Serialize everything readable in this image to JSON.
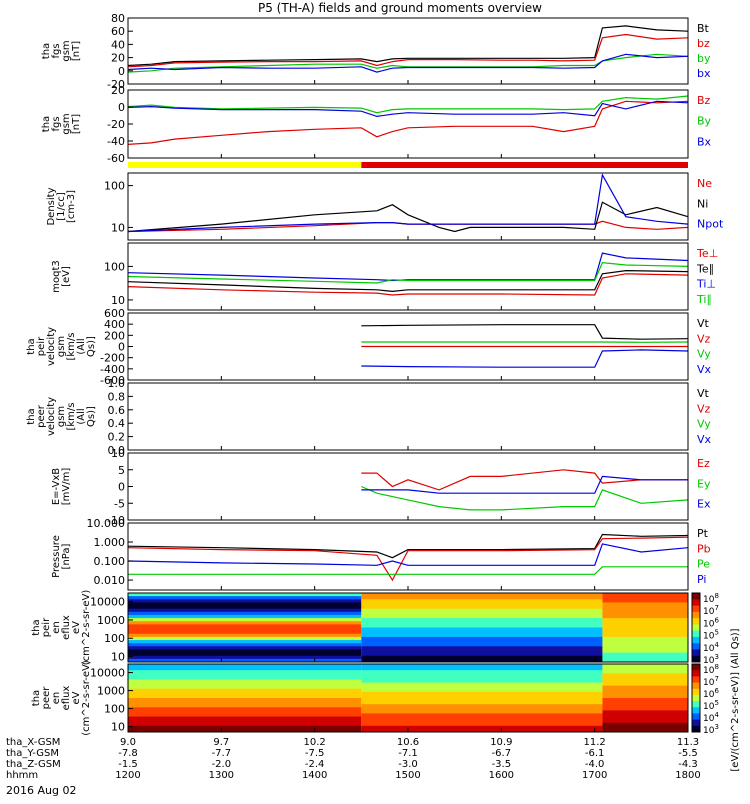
{
  "title": "P5 (TH-A) fields and ground moments overview",
  "date_label": "2016 Aug 02",
  "x_axis": {
    "row_labels": [
      "tha_X-GSM",
      "tha_Y-GSM",
      "tha_Z-GSM",
      "hhmm"
    ],
    "ticks": [
      {
        "row1": "9.0",
        "row2": "-7.8",
        "row3": "-1.5",
        "hhmm": "1200"
      },
      {
        "row1": "9.7",
        "row2": "-7.7",
        "row3": "-2.0",
        "hhmm": "1300"
      },
      {
        "row1": "10.2",
        "row2": "-7.5",
        "row3": "-2.4",
        "hhmm": "1400"
      },
      {
        "row1": "10.6",
        "row2": "-7.1",
        "row3": "-3.0",
        "hhmm": "1500"
      },
      {
        "row1": "10.9",
        "row2": "-6.7",
        "row3": "-3.5",
        "hhmm": "1600"
      },
      {
        "row1": "11.2",
        "row2": "-6.1",
        "row3": "-4.0",
        "hhmm": "1700"
      },
      {
        "row1": "11.3",
        "row2": "-5.5",
        "row3": "-4.3",
        "hhmm": "1800"
      }
    ]
  },
  "colorbar": {
    "label": "[eV/(cm^2-s-sr-eV)] (All Qs)]",
    "ticks": [
      "10^8",
      "10^7",
      "10^6",
      "10^5",
      "10^4",
      "10^3"
    ],
    "ticks2": [
      "10^8",
      "10^7",
      "10^6",
      "10^5",
      "10^4",
      "10^3"
    ]
  },
  "colors": {
    "black": "#000000",
    "red": "#e00000",
    "green": "#00c800",
    "blue": "#0000e0",
    "yellow": "#ffff00"
  },
  "chart_data": [
    {
      "type": "line",
      "ylabel": "tha fgs gsm [nT]",
      "ylim": [
        -20,
        80
      ],
      "yticks": [
        "80",
        "60",
        "40",
        "20",
        "0",
        "-20"
      ],
      "x_hhmm": [
        1200,
        1215,
        1230,
        1300,
        1330,
        1400,
        1430,
        1440,
        1450,
        1500,
        1530,
        1600,
        1620,
        1640,
        1700,
        1705,
        1720,
        1740,
        1800
      ],
      "series": [
        {
          "name": "Bt",
          "color": "black",
          "values": [
            8,
            10,
            14,
            15,
            16,
            17,
            18,
            14,
            18,
            19,
            19,
            19,
            19,
            19,
            20,
            65,
            68,
            62,
            60
          ]
        },
        {
          "name": "bz",
          "color": "red",
          "values": [
            6,
            8,
            12,
            13,
            14,
            14,
            15,
            8,
            14,
            17,
            17,
            16,
            16,
            15,
            16,
            50,
            55,
            48,
            50
          ]
        },
        {
          "name": "by",
          "color": "green",
          "values": [
            -2,
            0,
            4,
            6,
            8,
            10,
            10,
            4,
            8,
            6,
            6,
            6,
            6,
            8,
            8,
            15,
            20,
            25,
            22
          ]
        },
        {
          "name": "bx",
          "color": "blue",
          "values": [
            2,
            4,
            2,
            5,
            4,
            4,
            6,
            -2,
            4,
            5,
            5,
            5,
            5,
            4,
            5,
            15,
            25,
            20,
            22
          ]
        }
      ]
    },
    {
      "type": "line",
      "ylabel": "tha fgs gsm [nT]",
      "ylim": [
        -70,
        20
      ],
      "yticks": [
        "20",
        "0",
        "-20",
        "-40",
        "-60"
      ],
      "x_hhmm": [
        1200,
        1215,
        1230,
        1300,
        1330,
        1400,
        1430,
        1440,
        1450,
        1500,
        1530,
        1600,
        1620,
        1640,
        1700,
        1705,
        1720,
        1740,
        1800
      ],
      "series": [
        {
          "name": "Bz",
          "color": "red",
          "values": [
            -52,
            -50,
            -45,
            -40,
            -35,
            -32,
            -30,
            -42,
            -35,
            -30,
            -28,
            -28,
            -28,
            -35,
            -28,
            -5,
            5,
            3,
            5
          ]
        },
        {
          "name": "By",
          "color": "green",
          "values": [
            -2,
            0,
            -3,
            -5,
            -4,
            -3,
            -4,
            -10,
            -6,
            -5,
            -5,
            -5,
            -5,
            -6,
            -5,
            5,
            10,
            8,
            12
          ]
        },
        {
          "name": "Bx",
          "color": "blue",
          "values": [
            -3,
            -2,
            -4,
            -6,
            -6,
            -6,
            -8,
            -15,
            -12,
            -10,
            -12,
            -12,
            -12,
            -10,
            -14,
            2,
            -5,
            5,
            3
          ]
        }
      ]
    },
    {
      "type": "line",
      "ylabel": "Density [1/cc] [cm-3]",
      "ylim": [
        5,
        200
      ],
      "log": true,
      "yticks": [
        "100",
        "10"
      ],
      "x_hhmm": [
        1200,
        1300,
        1400,
        1440,
        1450,
        1500,
        1520,
        1530,
        1540,
        1600,
        1640,
        1700,
        1705,
        1720,
        1740,
        1800
      ],
      "series": [
        {
          "name": "Ne",
          "color": "red",
          "values": [
            8,
            9,
            11,
            13,
            13,
            12,
            12,
            12,
            12,
            12,
            12,
            12,
            14,
            10,
            9,
            10
          ]
        },
        {
          "name": "Ni",
          "color": "black",
          "values": [
            8,
            12,
            20,
            25,
            35,
            20,
            10,
            8,
            10,
            10,
            10,
            9,
            40,
            20,
            30,
            18
          ]
        },
        {
          "name": "Npot",
          "color": "blue",
          "values": [
            8,
            10,
            12,
            13,
            13,
            12,
            12,
            12,
            12,
            12,
            12,
            12,
            180,
            18,
            14,
            12
          ]
        }
      ]
    },
    {
      "type": "line",
      "ylabel": "moqt3 [eV]",
      "ylim": [
        5,
        500
      ],
      "log": true,
      "yticks": [
        "100",
        "10"
      ],
      "x_hhmm": [
        1200,
        1300,
        1400,
        1440,
        1450,
        1500,
        1600,
        1700,
        1705,
        1720,
        1800
      ],
      "series": [
        {
          "name": "Te⊥",
          "color": "red",
          "values": [
            25,
            20,
            17,
            16,
            14,
            15,
            15,
            14,
            45,
            60,
            55
          ]
        },
        {
          "name": "Te∥",
          "color": "black",
          "values": [
            35,
            28,
            22,
            20,
            18,
            20,
            20,
            20,
            60,
            75,
            70
          ]
        },
        {
          "name": "Ti⊥",
          "color": "blue",
          "values": [
            65,
            55,
            45,
            40,
            38,
            40,
            40,
            40,
            250,
            180,
            150
          ]
        },
        {
          "name": "Ti∥",
          "color": "green",
          "values": [
            50,
            42,
            36,
            32,
            40,
            38,
            38,
            38,
            130,
            110,
            100
          ]
        }
      ]
    },
    {
      "type": "line",
      "ylabel": "tha peir velocity gsm [km/s (All Qs)]",
      "ylim": [
        -600,
        600
      ],
      "yticks": [
        "600",
        "400",
        "200",
        "0",
        "-200",
        "-400",
        "-600"
      ],
      "x_hhmm": [
        1430,
        1500,
        1600,
        1700,
        1705,
        1730,
        1800
      ],
      "series": [
        {
          "name": "Vt",
          "color": "black",
          "values": [
            370,
            380,
            390,
            390,
            150,
            130,
            140
          ]
        },
        {
          "name": "Vz",
          "color": "red",
          "values": [
            0,
            0,
            0,
            0,
            0,
            0,
            0
          ]
        },
        {
          "name": "Vy",
          "color": "green",
          "values": [
            80,
            80,
            80,
            80,
            80,
            75,
            80
          ]
        },
        {
          "name": "Vx",
          "color": "blue",
          "values": [
            -350,
            -360,
            -370,
            -370,
            -80,
            -60,
            -80
          ]
        }
      ]
    },
    {
      "type": "line",
      "ylabel": "tha peer velocity gsm [km/s (All Qs)]",
      "ylim": [
        0,
        1
      ],
      "yticks": [
        "1.0",
        "0.8",
        "0.6",
        "0.4",
        "0.2",
        "0.0"
      ],
      "series": [
        {
          "name": "Vt",
          "color": "black",
          "values": []
        },
        {
          "name": "Vz",
          "color": "red",
          "values": []
        },
        {
          "name": "Vy",
          "color": "green",
          "values": []
        },
        {
          "name": "Vx",
          "color": "blue",
          "values": []
        }
      ]
    },
    {
      "type": "line",
      "ylabel": "E=-VxB [mV/m]",
      "ylim": [
        -10,
        10
      ],
      "yticks": [
        "10",
        "5",
        "0",
        "-5",
        "-10"
      ],
      "x_hhmm": [
        1430,
        1440,
        1450,
        1500,
        1520,
        1540,
        1600,
        1640,
        1700,
        1705,
        1730,
        1800
      ],
      "series": [
        {
          "name": "Ez",
          "color": "red",
          "values": [
            4,
            4,
            0,
            2,
            -1,
            3,
            3,
            5,
            4,
            1,
            2,
            2
          ]
        },
        {
          "name": "Ey",
          "color": "green",
          "values": [
            0,
            -2,
            -3,
            -4,
            -6,
            -7,
            -7,
            -6,
            -6,
            -1,
            -5,
            -4
          ]
        },
        {
          "name": "Ex",
          "color": "blue",
          "values": [
            -1,
            -1,
            -1,
            -1,
            -2,
            -2,
            -2,
            -2,
            -2,
            3,
            2,
            2
          ]
        }
      ]
    },
    {
      "type": "line",
      "ylabel": "Pressure [nPa]",
      "ylim": [
        0.003,
        10
      ],
      "log": true,
      "yticks": [
        "10.000",
        "1.000",
        "0.100",
        "0.010"
      ],
      "x_hhmm": [
        1200,
        1300,
        1400,
        1440,
        1450,
        1500,
        1600,
        1700,
        1705,
        1730,
        1800
      ],
      "series": [
        {
          "name": "Pt",
          "color": "black",
          "values": [
            0.6,
            0.5,
            0.4,
            0.3,
            0.15,
            0.4,
            0.4,
            0.45,
            2.5,
            2.0,
            2.2
          ]
        },
        {
          "name": "Pb",
          "color": "red",
          "values": [
            0.5,
            0.4,
            0.35,
            0.2,
            0.01,
            0.35,
            0.35,
            0.4,
            1.5,
            1.6,
            1.8
          ]
        },
        {
          "name": "Pe",
          "color": "green",
          "values": [
            0.02,
            0.02,
            0.02,
            0.02,
            0.02,
            0.02,
            0.02,
            0.02,
            0.05,
            0.05,
            0.05
          ]
        },
        {
          "name": "Pi",
          "color": "blue",
          "values": [
            0.1,
            0.08,
            0.07,
            0.06,
            0.1,
            0.06,
            0.06,
            0.06,
            0.8,
            0.3,
            0.5
          ]
        }
      ]
    },
    {
      "type": "heatmap",
      "ylabel": "tha peir en eflux eV (cm^2-s-sr-eV)",
      "log": true,
      "ylim": [
        5,
        30000
      ],
      "yticks": [
        "10000",
        "1000",
        "100",
        "10"
      ],
      "note_intervals_hhmm": [
        1200,
        1430,
        1705,
        1800
      ]
    },
    {
      "type": "heatmap",
      "ylabel": "tha peer en eflux eV (cm^2-s-sr-eV)",
      "log": true,
      "ylim": [
        5,
        30000
      ],
      "yticks": [
        "10000",
        "1000",
        "100",
        "10"
      ],
      "note_intervals_hhmm": [
        1200,
        1430,
        1705,
        1800
      ]
    }
  ]
}
